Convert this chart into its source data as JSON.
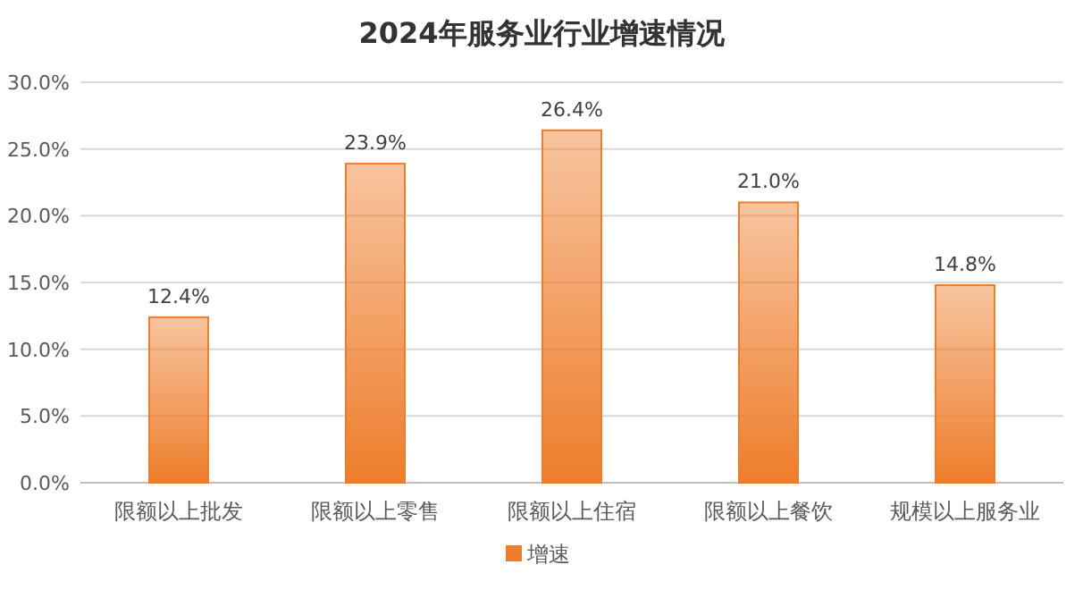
{
  "chart_data": {
    "type": "bar",
    "title": "2024年服务业行业增速情况",
    "categories": [
      "限额以上批发",
      "限额以上零售",
      "限额以上住宿",
      "限额以上餐饮",
      "规模以上服务业"
    ],
    "series": [
      {
        "name": "增速",
        "color": "#ee7d2b",
        "values": [
          12.4,
          23.9,
          26.4,
          21.0,
          14.8
        ],
        "value_labels": [
          "12.4%",
          "23.9%",
          "26.4%",
          "21.0%",
          "14.8%"
        ]
      }
    ],
    "ylim": [
      0,
      30
    ],
    "yticks": [
      {
        "value": 0,
        "label": "0.0%"
      },
      {
        "value": 5,
        "label": "5.0%"
      },
      {
        "value": 10,
        "label": "10.0%"
      },
      {
        "value": 15,
        "label": "15.0%"
      },
      {
        "value": 20,
        "label": "20.0%"
      },
      {
        "value": 25,
        "label": "25.0%"
      },
      {
        "value": 30,
        "label": "30.0%"
      }
    ],
    "grid": "y",
    "legend": "bottom"
  }
}
